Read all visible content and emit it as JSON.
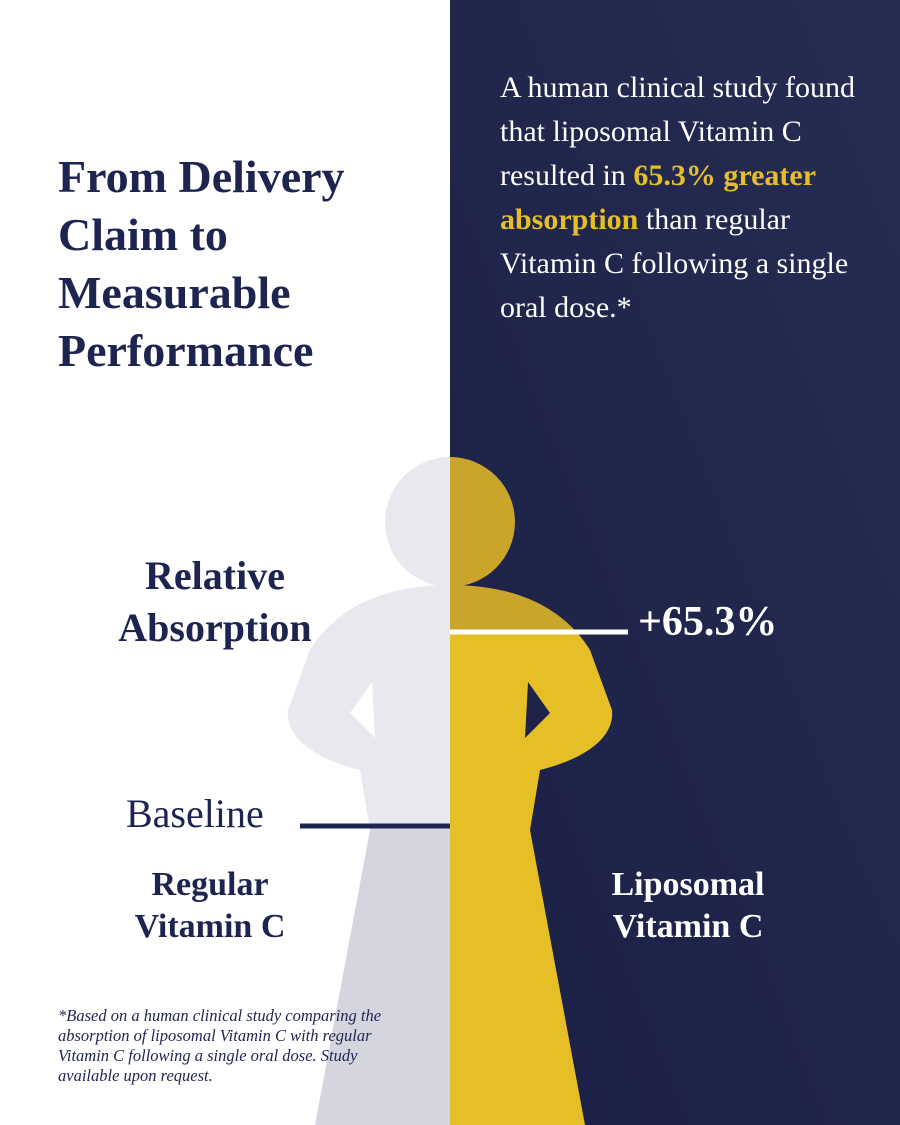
{
  "title_lines": [
    "From Delivery",
    "Claim to",
    "Measurable",
    "Performance"
  ],
  "intro": {
    "before": "A human clinical study found that liposomal Vitamin C resulted in ",
    "highlight": "65.3% greater absorption",
    "after": " than regular Vitamin C following a single oral dose.*"
  },
  "axis_label": "Relative Absorption",
  "increase_label": "+65.3%",
  "baseline_label": "Baseline",
  "left_product": "Regular Vitamin C",
  "right_product": "Liposomal Vitamin C",
  "footnote": "*Based on a human clinical study comparing the absorption of liposomal Vitamin C with regular Vitamin C following a single oral dose. Study available upon request."
}
